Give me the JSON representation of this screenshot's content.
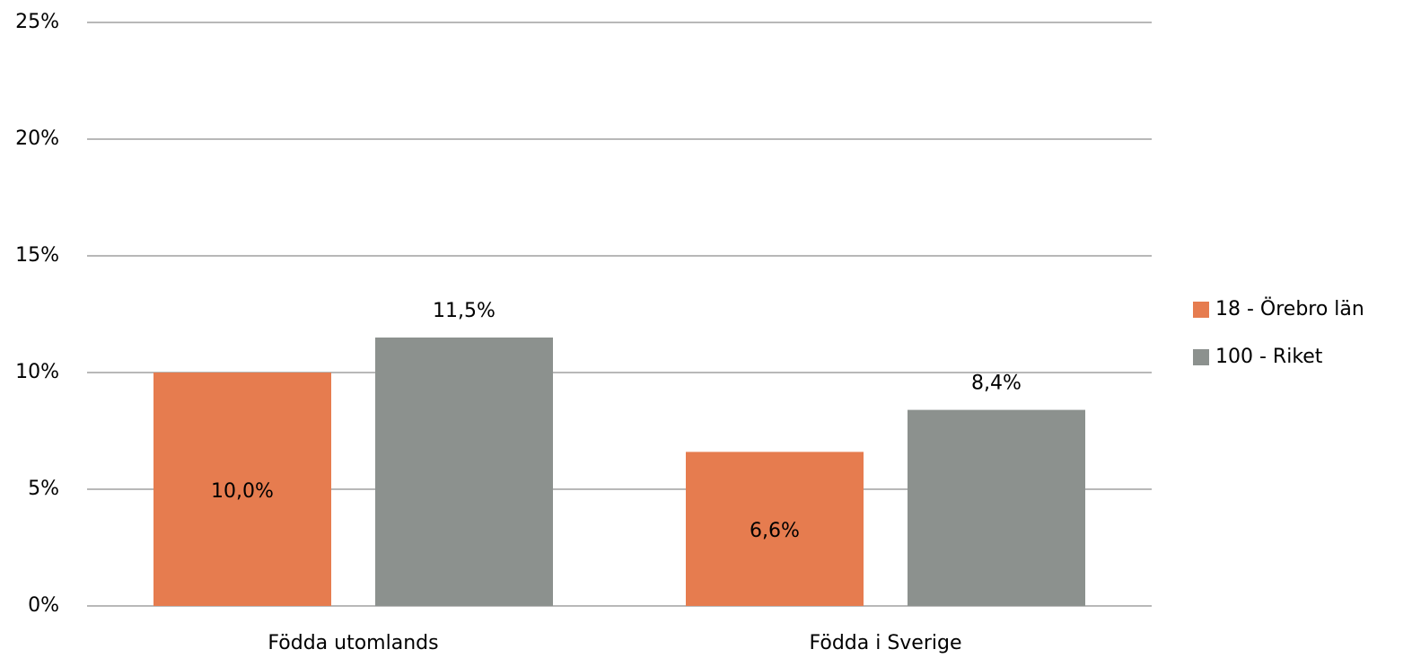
{
  "chart_data": {
    "type": "bar",
    "categories": [
      "Födda utomlands",
      "Födda i Sverige"
    ],
    "series": [
      {
        "name": "18 - Örebro län",
        "color": "#e67c4f",
        "values": [
          10.0,
          6.6
        ],
        "value_labels": [
          "10,0%",
          "6,6%"
        ],
        "label_position": "center"
      },
      {
        "name": "100 - Riket",
        "color": "#8c918e",
        "values": [
          11.5,
          8.4
        ],
        "value_labels": [
          "11,5%",
          "8,4%"
        ],
        "label_position": "outside_end"
      }
    ],
    "ylim": [
      0,
      25
    ],
    "yticks": [
      {
        "value": 0,
        "label": "0%"
      },
      {
        "value": 5,
        "label": "5%"
      },
      {
        "value": 10,
        "label": "10%"
      },
      {
        "value": 15,
        "label": "15%"
      },
      {
        "value": 20,
        "label": "20%"
      },
      {
        "value": 25,
        "label": "25%"
      }
    ],
    "grid": true,
    "legend": "right"
  }
}
